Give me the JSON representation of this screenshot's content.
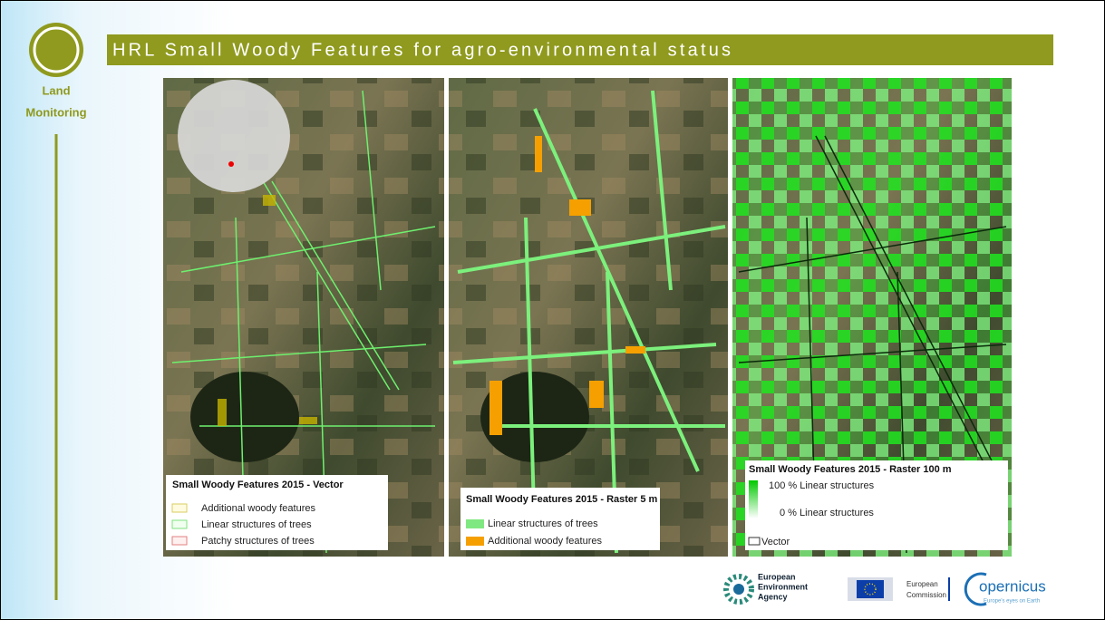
{
  "header": {
    "title": "HRL Small Woody Features for agro-environmental status",
    "badge": [
      "Land",
      "Monitoring"
    ]
  },
  "panels": [
    {
      "legend_title": "Small Woody Features 2015 - Vector",
      "items": [
        "Additional woody features",
        "Linear structures of trees",
        "Patchy structures of trees"
      ]
    },
    {
      "legend_title": "Small Woody Features 2015 - Raster 5 m",
      "items": [
        "Linear structures of trees",
        "Additional woody features"
      ]
    },
    {
      "legend_title": "Small Woody Features 2015 - Raster 100  m",
      "items": [
        "100 % Linear structures",
        "0 % Linear structures",
        "Vector"
      ]
    }
  ],
  "logos": {
    "eea": [
      "European",
      "Environment",
      "Agency"
    ],
    "ec": [
      "European",
      "Commission"
    ],
    "copernicus": "opernicus",
    "copernicus_tagline": "Europe's eyes on Earth"
  }
}
